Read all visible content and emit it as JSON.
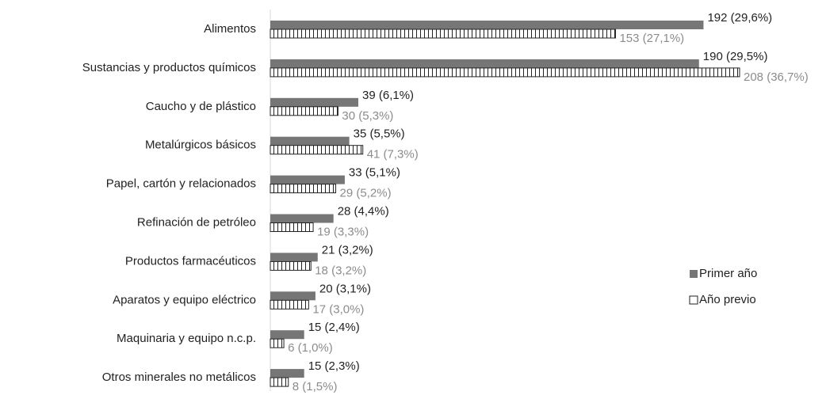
{
  "chart_data": {
    "type": "bar",
    "orientation": "horizontal",
    "categories": [
      "Alimentos",
      "Sustancias y productos químicos",
      "Caucho y de plástico",
      "Metalúrgicos básicos",
      "Papel, cartón y relacionados",
      "Refinación de petróleo",
      "Productos farmacéuticos",
      "Aparatos y equipo eléctrico",
      "Maquinaria y equipo n.c.p.",
      "Otros minerales no metálicos"
    ],
    "series": [
      {
        "name": "Primer año",
        "color": "#767676",
        "values": [
          192,
          190,
          39,
          35,
          33,
          28,
          21,
          20,
          15,
          15
        ],
        "value_labels": [
          "192 (29,6%)",
          "190 (29,5%)",
          "39 (6,1%)",
          "35 (5,5%)",
          "33 (5,1%)",
          "28 (4,4%)",
          "21 (3,2%)",
          "20 (3,1%)",
          "15 (2,4%)",
          "15 (2,3%)"
        ]
      },
      {
        "name": "Año previo",
        "color": "#ffffff",
        "values": [
          153,
          208,
          30,
          41,
          29,
          19,
          18,
          17,
          6,
          8
        ],
        "value_labels": [
          "153 (27,1%)",
          "208 (36,7%)",
          "30 (5,3%)",
          "41 (7,3%)",
          "29 (5,2%)",
          "19 (3,3%)",
          "18 (3,2%)",
          "17 (3,0%)",
          "6 (1,0%)",
          "8 (1,5%)"
        ]
      }
    ],
    "legend": "right"
  }
}
